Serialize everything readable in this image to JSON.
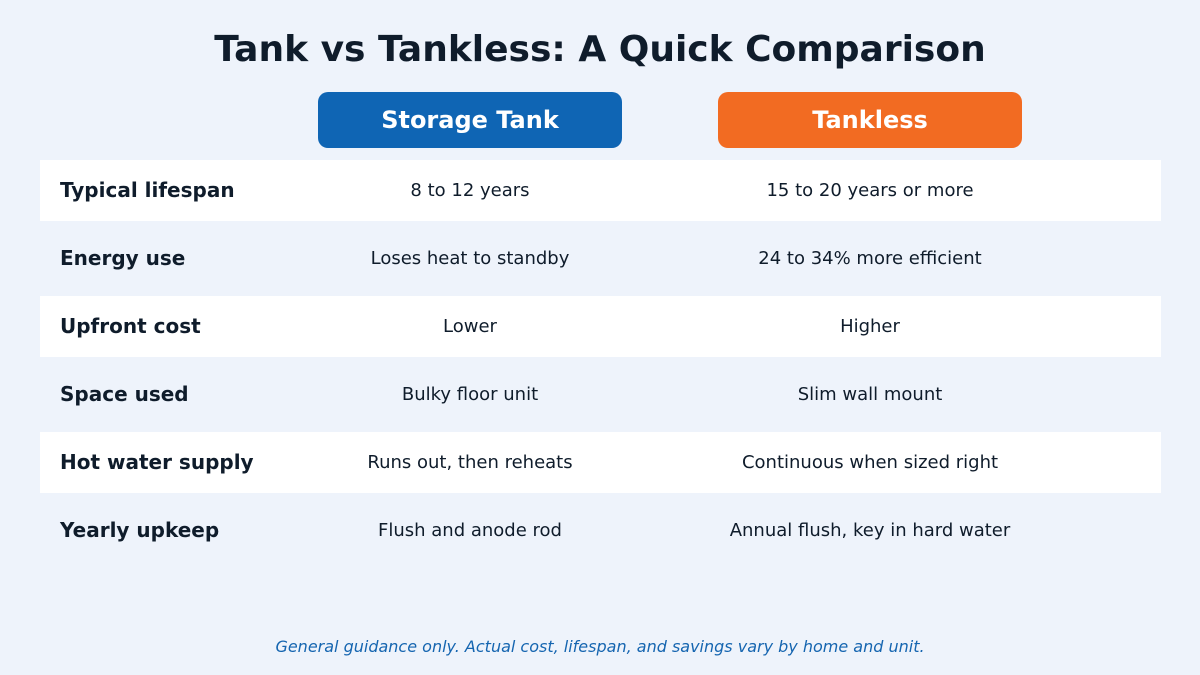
{
  "title": "Tank vs Tankless: A Quick Comparison",
  "colors": {
    "background": "#eef3fb",
    "tank_header": "#0f65b4",
    "tankless_header": "#f26b22",
    "text": "#0f1c2b",
    "footnote": "#1565b0"
  },
  "columns": [
    {
      "label": "Storage Tank",
      "color": "#0f65b4"
    },
    {
      "label": "Tankless",
      "color": "#f26b22"
    }
  ],
  "rows": [
    {
      "label": "Typical lifespan",
      "tank": "8 to 12 years",
      "tankless": "15 to 20 years or more"
    },
    {
      "label": "Energy use",
      "tank": "Loses heat to standby",
      "tankless": "24 to 34% more efficient"
    },
    {
      "label": "Upfront cost",
      "tank": "Lower",
      "tankless": "Higher"
    },
    {
      "label": "Space used",
      "tank": "Bulky floor unit",
      "tankless": "Slim wall mount"
    },
    {
      "label": "Hot water supply",
      "tank": "Runs out, then reheats",
      "tankless": "Continuous when sized right"
    },
    {
      "label": "Yearly upkeep",
      "tank": "Flush and anode rod",
      "tankless": "Annual flush, key in hard water"
    }
  ],
  "footnote": "General guidance only. Actual cost, lifespan, and savings vary by home and unit."
}
